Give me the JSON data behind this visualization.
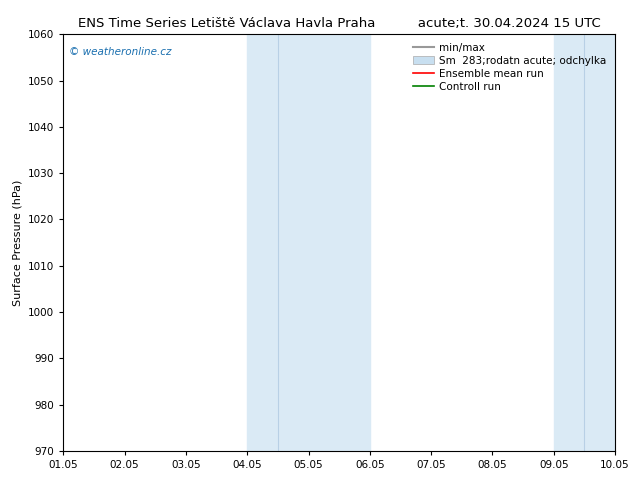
{
  "title_left": "ENS Time Series Letiště Václava Havla Praha",
  "title_right": "acute;t. 30.04.2024 15 UTC",
  "ylabel": "Surface Pressure (hPa)",
  "ylim": [
    970,
    1060
  ],
  "yticks": [
    970,
    980,
    990,
    1000,
    1010,
    1020,
    1030,
    1040,
    1050,
    1060
  ],
  "xlim": [
    0,
    9
  ],
  "xtick_labels": [
    "01.05",
    "02.05",
    "03.05",
    "04.05",
    "05.05",
    "06.05",
    "07.05",
    "08.05",
    "09.05",
    "10.05"
  ],
  "xtick_positions": [
    0,
    1,
    2,
    3,
    4,
    5,
    6,
    7,
    8,
    9
  ],
  "shaded_bands": [
    {
      "xmin": 3.0,
      "xmax": 3.5
    },
    {
      "xmin": 3.5,
      "xmax": 5.0
    },
    {
      "xmin": 8.0,
      "xmax": 8.5
    },
    {
      "xmin": 8.5,
      "xmax": 9.0
    }
  ],
  "shade_color_dark": "#c5d9ea",
  "shade_color_light": "#ddedf8",
  "shaded_bands_2": [
    {
      "xmin": 3.0,
      "xmax": 5.0,
      "color": "#daeaf5"
    },
    {
      "xmin": 8.0,
      "xmax": 9.0,
      "color": "#daeaf5"
    }
  ],
  "legend_entries": [
    {
      "label": "min/max",
      "color": "#999999",
      "lw": 1.5,
      "type": "line"
    },
    {
      "label": "Sm  283;rodatn acute; odchylka",
      "color": "#c8dff0",
      "lw": 8,
      "type": "patch"
    },
    {
      "label": "Ensemble mean run",
      "color": "red",
      "lw": 1.2,
      "type": "line"
    },
    {
      "label": "Controll run",
      "color": "green",
      "lw": 1.2,
      "type": "line"
    }
  ],
  "watermark": "© weatheronline.cz",
  "watermark_color": "#1a6faf",
  "bg_color": "#ffffff",
  "title_fontsize": 9.5,
  "tick_fontsize": 7.5,
  "ylabel_fontsize": 8,
  "legend_fontsize": 7.5,
  "title_font": "DejaVu Sans"
}
